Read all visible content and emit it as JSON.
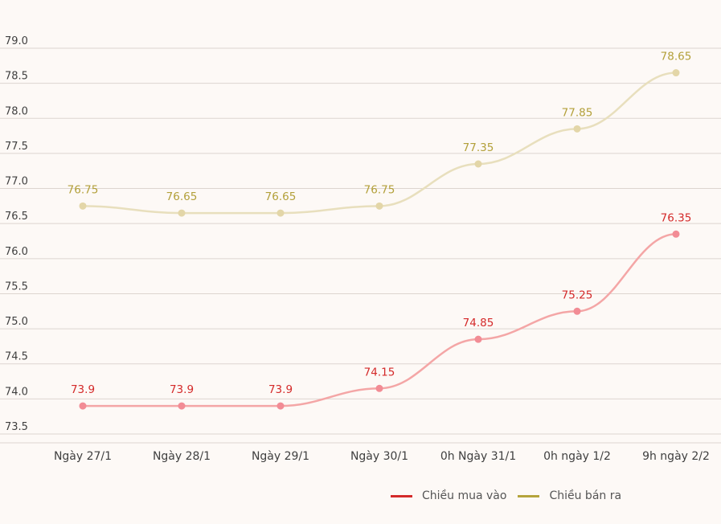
{
  "chart_data": {
    "type": "line",
    "categories": [
      "Ngày 27/1",
      "Ngày 28/1",
      "Ngày 29/1",
      "Ngày 30/1",
      "0h Ngày 31/1",
      "0h ngày 1/2",
      "9h ngày 2/2"
    ],
    "series": [
      {
        "name": "Chiều mua vào",
        "values": [
          73.9,
          73.9,
          73.9,
          74.15,
          74.85,
          75.25,
          76.35
        ],
        "labels": [
          "73.9",
          "73.9",
          "73.9",
          "74.15",
          "74.85",
          "75.25",
          "76.35"
        ],
        "line_color": "#f4a6a6",
        "marker_color": "#f28c95",
        "label_color": "#d42a2a",
        "legend_color": "#d42a2a"
      },
      {
        "name": "Chiều bán ra",
        "values": [
          76.75,
          76.65,
          76.65,
          76.75,
          77.35,
          77.85,
          78.65
        ],
        "labels": [
          "76.75",
          "76.65",
          "76.65",
          "76.75",
          "77.35",
          "77.85",
          "78.65"
        ],
        "line_color": "#e8dfbd",
        "marker_color": "#e3d6a8",
        "label_color": "#b3a03a",
        "legend_color": "#b5a43c"
      }
    ],
    "y_ticks": [
      "73.5",
      "74.0",
      "74.5",
      "75.0",
      "75.5",
      "76.0",
      "76.5",
      "77.0",
      "77.5",
      "78.0",
      "78.5",
      "79.0"
    ],
    "ylim": [
      73.5,
      79.0
    ],
    "grid": true,
    "legend_position": "bottom-right"
  }
}
